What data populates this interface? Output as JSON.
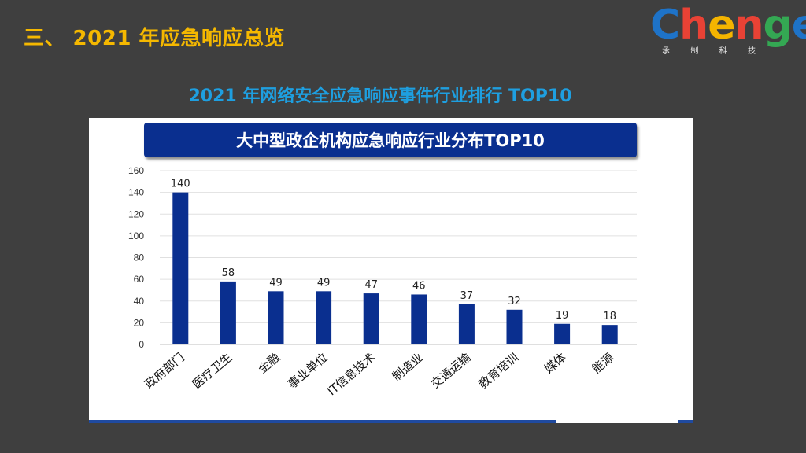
{
  "slide": {
    "title": "三、 2021 年应急响应总览",
    "subtitle": "2021 年网络安全应急响应事件行业排行 TOP10"
  },
  "logo": {
    "letters": [
      {
        "ch": "C",
        "color": "#1e73c8"
      },
      {
        "ch": "h",
        "color": "#e94235"
      },
      {
        "ch": "e",
        "color": "#f4b400"
      },
      {
        "ch": "n",
        "color": "#e94235"
      },
      {
        "ch": "g",
        "color": "#34a853"
      },
      {
        "ch": "e",
        "color": "#1e73c8"
      }
    ],
    "sub_chars": [
      "承",
      "制",
      "科",
      "技"
    ]
  },
  "colors": {
    "title": "#f5b800",
    "subtitle": "#1e9fe0",
    "bar": "#0a2f8f",
    "title_box": "#0a2f8f"
  },
  "chart_data": {
    "type": "bar",
    "title": "大中型政企机构应急响应行业分布TOP10",
    "categories": [
      "政府部门",
      "医疗卫生",
      "金融",
      "事业单位",
      "IT信息技术",
      "制造业",
      "交通运输",
      "教育培训",
      "媒体",
      "能源"
    ],
    "values": [
      140,
      58,
      49,
      49,
      47,
      46,
      37,
      32,
      19,
      18
    ],
    "ylim": [
      0,
      160
    ],
    "yticks": [
      0,
      20,
      40,
      60,
      80,
      100,
      120,
      140,
      160
    ],
    "grid": true,
    "data_labels": true,
    "xlabel": "",
    "ylabel": ""
  }
}
